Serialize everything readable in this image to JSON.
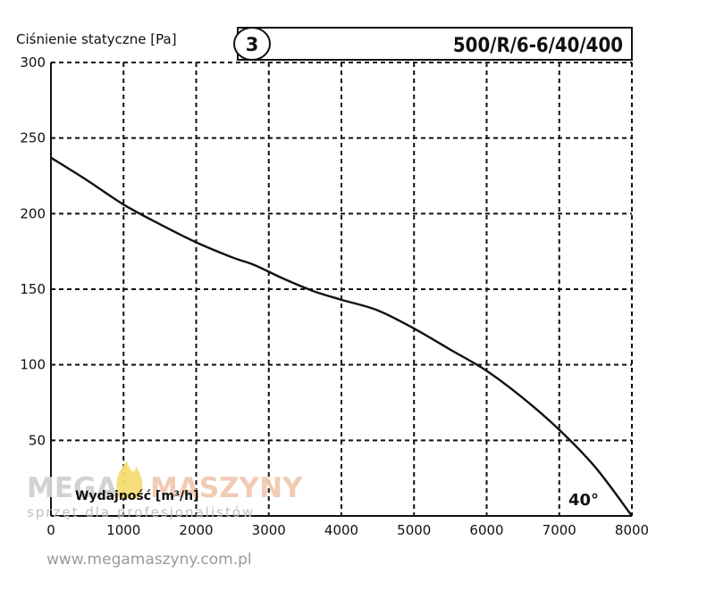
{
  "chart_data": {
    "type": "line",
    "ylabel": "Ciśnienie statyczne [Pa]",
    "xlabel": "Wydajność [m³/h]",
    "badge": "3",
    "model": "500/R/6-6/40/400",
    "annotation": "40°",
    "xlim": [
      0,
      8000
    ],
    "ylim": [
      0,
      300
    ],
    "x_ticks": [
      "0",
      "1000",
      "2000",
      "3000",
      "4000",
      "5000",
      "6000",
      "7000",
      "8000"
    ],
    "y_ticks": [
      "50",
      "100",
      "150",
      "200",
      "250",
      "300"
    ],
    "grid": true,
    "series": [
      {
        "x": [
          0,
          500,
          1000,
          1500,
          2000,
          2500,
          2800,
          3200,
          3600,
          4000,
          4500,
          5000,
          5500,
          6000,
          6500,
          7000,
          7500,
          8000
        ],
        "y": [
          237,
          222,
          206,
          193,
          181,
          171,
          166,
          157,
          149,
          143,
          136,
          124,
          110,
          96,
          78,
          57,
          32,
          0
        ]
      }
    ]
  },
  "watermark": {
    "brand_left": "MEGA",
    "brand_right": "MASZYNY",
    "tagline": "sprzęt dla profesjonalistów",
    "url": "www.megamaszyny.com.pl",
    "colors": {
      "mega": "#d0d0d0",
      "maszyny": "#f2c9b2",
      "flame": "#f6de73"
    }
  }
}
